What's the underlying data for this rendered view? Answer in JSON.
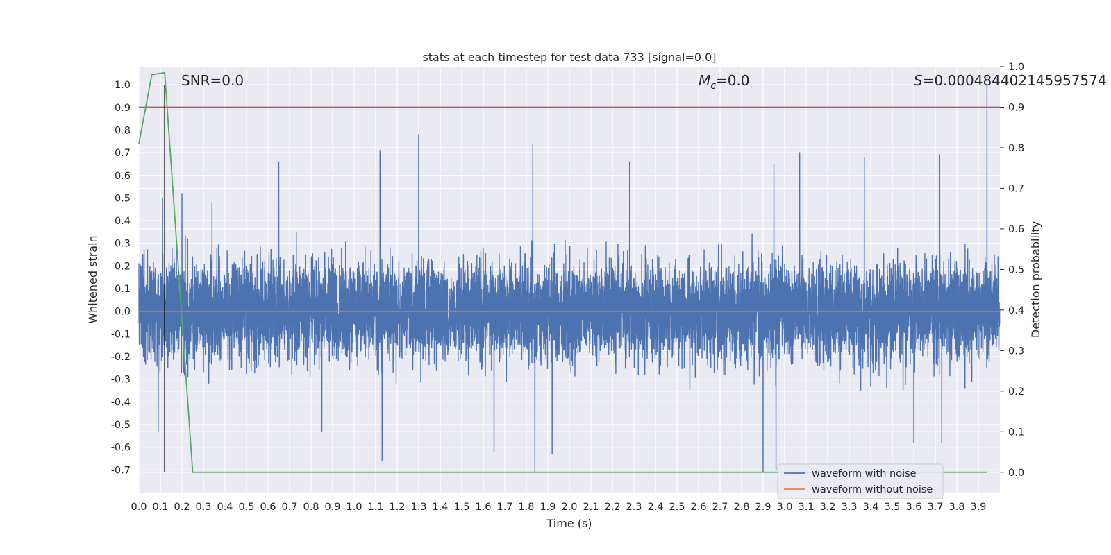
{
  "chart_data": {
    "type": "line",
    "title": "stats at each timestep for test data 733 [signal=0.0]",
    "xlabel": "Time (s)",
    "ylabel": "Whitened strain",
    "ylabel_right": "Detection probability",
    "xlim": [
      0.0,
      4.0
    ],
    "ylim": [
      -0.8,
      1.08
    ],
    "ylim_right": [
      -0.05,
      1.0
    ],
    "x_ticks": [
      0.0,
      0.1,
      0.2,
      0.3,
      0.4,
      0.5,
      0.6,
      0.7,
      0.8,
      0.9,
      1.0,
      1.1,
      1.2,
      1.3,
      1.4,
      1.5,
      1.6,
      1.7,
      1.8,
      1.9,
      2.0,
      2.1,
      2.2,
      2.3,
      2.4,
      2.5,
      2.6,
      2.7,
      2.8,
      2.9,
      3.0,
      3.1,
      3.2,
      3.3,
      3.4,
      3.5,
      3.6,
      3.7,
      3.8,
      3.9
    ],
    "y_ticks": [
      -0.7,
      -0.6,
      -0.5,
      -0.4,
      -0.3,
      -0.2,
      -0.1,
      0.0,
      0.1,
      0.2,
      0.3,
      0.4,
      0.5,
      0.6,
      0.7,
      0.8,
      0.9,
      1.0
    ],
    "y_right_ticks": [
      0.0,
      0.1,
      0.2,
      0.3,
      0.4,
      0.5,
      0.6,
      0.7,
      0.8,
      0.9,
      1.0
    ],
    "grid": true,
    "legend_position": "bottom-right",
    "annotations": {
      "snr": "SNR=0.0",
      "mc_symbol": "M",
      "mc_sub": "c",
      "mc_value": "=0.0",
      "s_symbol": "S",
      "s_value": "=0.00048440214595757",
      "s_trail": "4"
    },
    "series": [
      {
        "name": "waveform with noise",
        "color": "#4c72b0",
        "axis": "left",
        "sample_rate": 2048,
        "duration": 4.0,
        "envelope_peak": 1.0,
        "envelope_trough": -0.71,
        "peak_points": [
          [
            0.09,
            0.5
          ],
          [
            0.11,
            0.5
          ],
          [
            0.2,
            0.52
          ],
          [
            0.34,
            0.48
          ],
          [
            0.65,
            0.66
          ],
          [
            1.12,
            0.71
          ],
          [
            1.3,
            0.78
          ],
          [
            1.83,
            0.74
          ],
          [
            2.28,
            0.66
          ],
          [
            2.95,
            0.65
          ],
          [
            3.07,
            0.7
          ],
          [
            3.37,
            0.68
          ],
          [
            3.72,
            0.69
          ],
          [
            3.94,
            1.0
          ]
        ],
        "trough_points": [
          [
            0.09,
            -0.53
          ],
          [
            0.85,
            -0.53
          ],
          [
            1.13,
            -0.66
          ],
          [
            1.65,
            -0.62
          ],
          [
            1.84,
            -0.71
          ],
          [
            1.92,
            -0.63
          ],
          [
            2.9,
            -0.71
          ],
          [
            2.96,
            -0.7
          ],
          [
            3.6,
            -0.58
          ],
          [
            3.73,
            -0.58
          ]
        ]
      },
      {
        "name": "waveform without noise",
        "color": "#dd8452",
        "axis": "left",
        "x": [
          0.0,
          4.0
        ],
        "y": [
          0.0,
          0.0
        ]
      },
      {
        "name": "detection probability",
        "color": "#55a868",
        "axis": "right",
        "x": [
          0.0,
          0.06,
          0.12,
          0.25,
          0.5,
          1.0,
          1.5,
          2.0,
          2.5,
          3.0,
          3.5,
          3.94
        ],
        "y": [
          0.81,
          0.98,
          0.985,
          0.0,
          0.0,
          0.0,
          0.0,
          0.0,
          0.0,
          0.0,
          0.0,
          0.0
        ]
      }
    ],
    "threshold_right": 0.9,
    "threshold_color": "#c44e52",
    "vertical_marker_x": 0.12,
    "vertical_marker_range": [
      -0.71,
      1.0
    ],
    "vertical_marker_color": "#000000"
  }
}
